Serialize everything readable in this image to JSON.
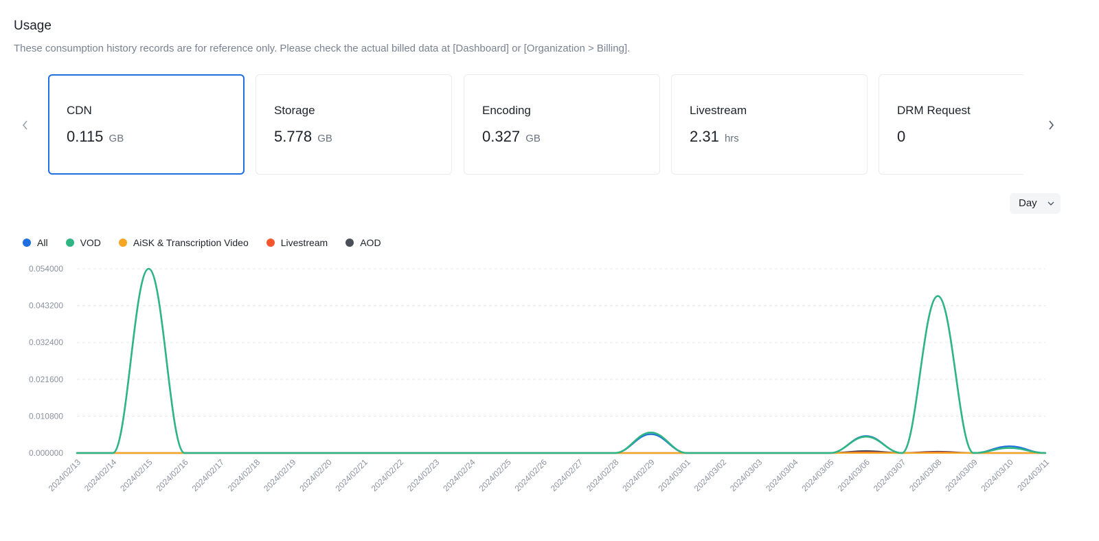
{
  "header": {
    "title": "Usage",
    "note": "These consumption history records are for reference only. Please check the actual billed data at [Dashboard] or [Organization > Billing]."
  },
  "cards": [
    {
      "label": "CDN",
      "value": "0.115",
      "unit": "GB",
      "active": true
    },
    {
      "label": "Storage",
      "value": "5.778",
      "unit": "GB"
    },
    {
      "label": "Encoding",
      "value": "0.327",
      "unit": "GB"
    },
    {
      "label": "Livestream",
      "value": "2.31",
      "unit": "hrs"
    },
    {
      "label": "DRM Request",
      "value": "0",
      "unit": ""
    }
  ],
  "controls": {
    "prev_icon": "chevron-left-icon",
    "next_icon": "chevron-right-icon",
    "period": "Day"
  },
  "chart_data": {
    "type": "line",
    "categories": [
      "2024/02/13",
      "2024/02/14",
      "2024/02/15",
      "2024/02/16",
      "2024/02/17",
      "2024/02/18",
      "2024/02/19",
      "2024/02/20",
      "2024/02/21",
      "2024/02/22",
      "2024/02/23",
      "2024/02/24",
      "2024/02/25",
      "2024/02/26",
      "2024/02/27",
      "2024/02/28",
      "2024/02/29",
      "2024/03/01",
      "2024/03/02",
      "2024/03/03",
      "2024/03/04",
      "2024/03/05",
      "2024/03/06",
      "2024/03/07",
      "2024/03/08",
      "2024/03/09",
      "2024/03/10",
      "2024/03/11"
    ],
    "ylim": [
      0,
      0.054
    ],
    "yticks": [
      "0.000000",
      "0.010800",
      "0.021600",
      "0.032400",
      "0.043200",
      "0.054000"
    ],
    "grid": true,
    "legend_position": "top-left",
    "series": [
      {
        "name": "All",
        "color": "#1f6fe0",
        "values": [
          0,
          0,
          0.054,
          0,
          0,
          0,
          0,
          0,
          0,
          0,
          0,
          0,
          0,
          0,
          0,
          0,
          0.0055,
          0,
          0,
          0,
          0,
          0,
          0.005,
          0,
          0.046,
          0,
          0.002,
          0
        ]
      },
      {
        "name": "VOD",
        "color": "#2fb484",
        "values": [
          0,
          0,
          0.054,
          0,
          0,
          0,
          0,
          0,
          0,
          0,
          0,
          0,
          0,
          0,
          0,
          0,
          0.006,
          0,
          0,
          0,
          0,
          0,
          0.0048,
          0,
          0.046,
          0,
          0.0015,
          0
        ]
      },
      {
        "name": "AiSK & Transcription Video",
        "color": "#f5a623",
        "values": [
          0,
          0,
          0,
          0,
          0,
          0,
          0,
          0,
          0,
          0,
          0,
          0,
          0,
          0,
          0,
          0,
          0,
          0,
          0,
          0,
          0,
          0,
          0,
          0,
          0,
          0,
          0,
          0
        ]
      },
      {
        "name": "Livestream",
        "color": "#f4572e",
        "values": [
          0,
          0,
          0,
          0,
          0,
          0,
          0,
          0,
          0,
          0,
          0,
          0,
          0,
          0,
          0,
          0,
          0,
          0,
          0,
          0,
          0,
          0,
          0.0002,
          0,
          0.0002,
          0,
          0,
          0
        ]
      },
      {
        "name": "AOD",
        "color": "#4a4f5a",
        "values": [
          0,
          0,
          0,
          0,
          0,
          0,
          0,
          0,
          0,
          0,
          0,
          0,
          0,
          0,
          0,
          0,
          0,
          0,
          0,
          0,
          0,
          0,
          0.0006,
          0,
          0.0004,
          0,
          0,
          0
        ]
      }
    ]
  }
}
